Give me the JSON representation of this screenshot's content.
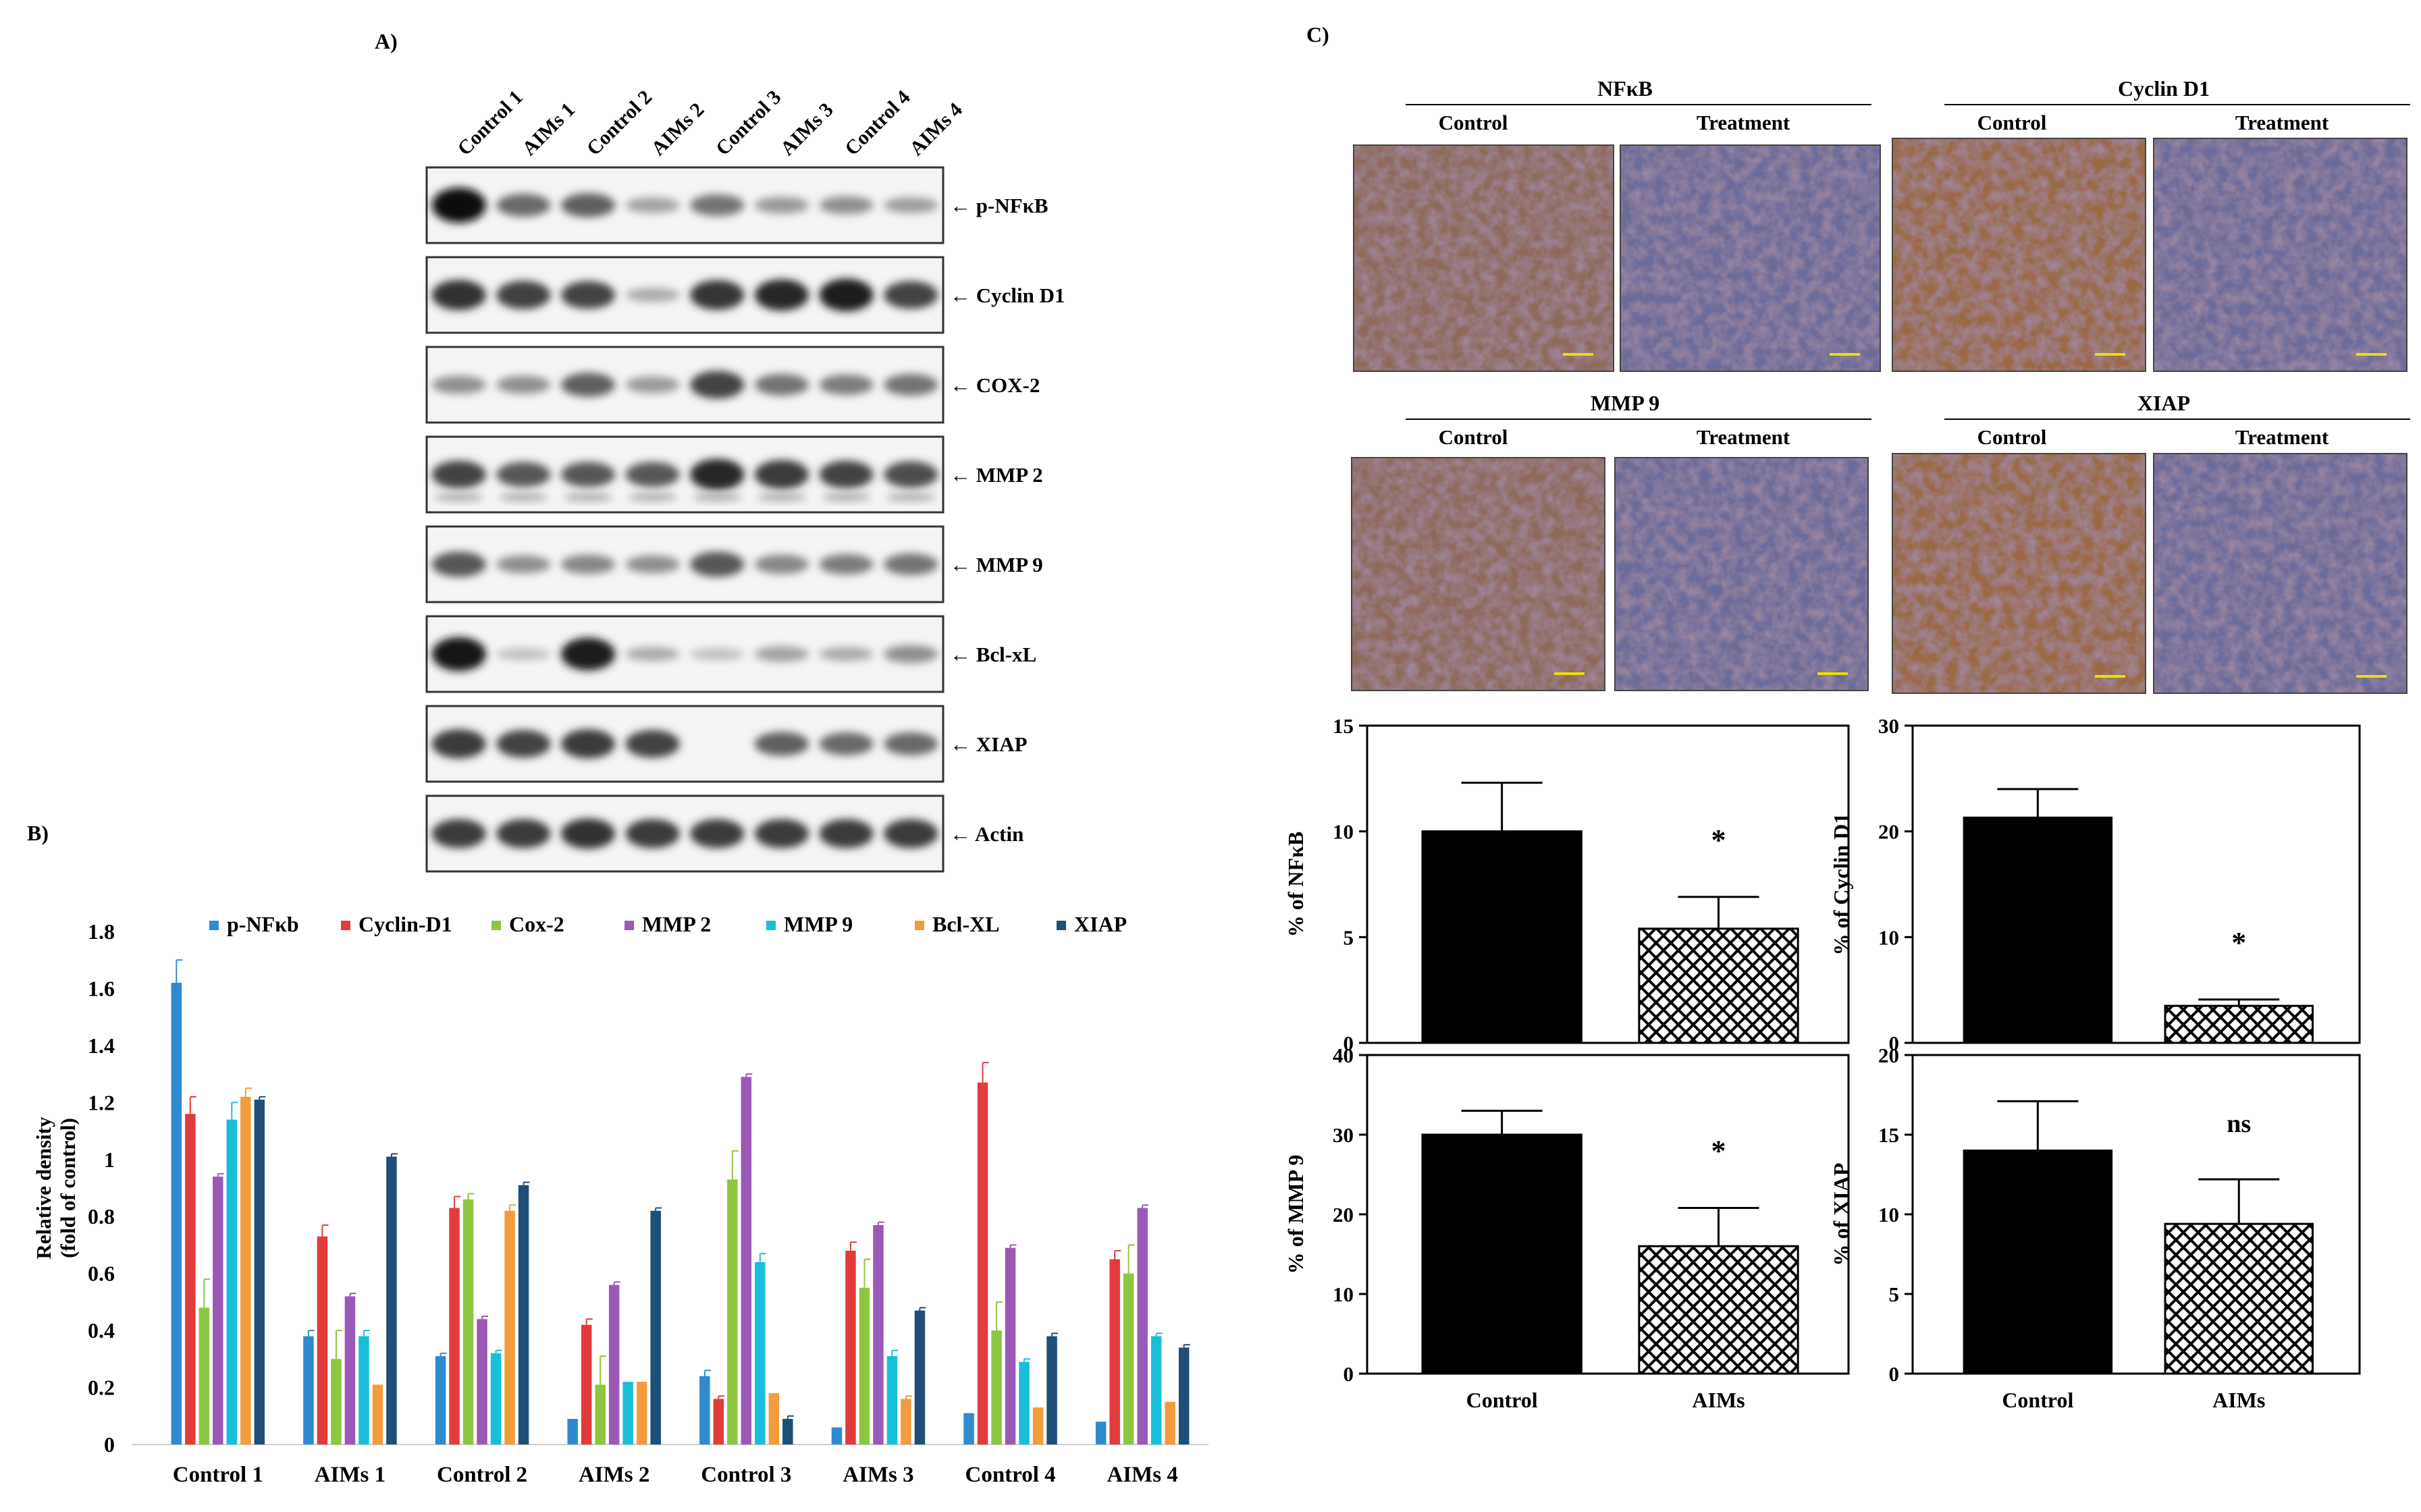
{
  "panel_labels": {
    "a": "A)",
    "b": "B)",
    "c": "C)"
  },
  "blot": {
    "lanes": [
      "Control 1",
      "AIMs 1",
      "Control 2",
      "AIMs 2",
      "Control 3",
      "AIMs 3",
      "Control 4",
      "AIMs 4"
    ],
    "rows": [
      {
        "label": "p-NFκB",
        "intensity": [
          1.0,
          0.5,
          0.55,
          0.2,
          0.45,
          0.25,
          0.3,
          0.22
        ]
      },
      {
        "label": "Cyclin D1",
        "intensity": [
          0.8,
          0.72,
          0.7,
          0.15,
          0.78,
          0.85,
          0.9,
          0.7
        ]
      },
      {
        "label": "COX-2",
        "intensity": [
          0.3,
          0.3,
          0.55,
          0.25,
          0.7,
          0.45,
          0.4,
          0.45
        ]
      },
      {
        "label": "MMP 2",
        "intensity": [
          0.7,
          0.6,
          0.6,
          0.6,
          0.85,
          0.75,
          0.7,
          0.65
        ]
      },
      {
        "label": "MMP 9",
        "intensity": [
          0.6,
          0.3,
          0.35,
          0.3,
          0.6,
          0.35,
          0.4,
          0.45
        ]
      },
      {
        "label": "Bcl-xL",
        "intensity": [
          0.95,
          0.05,
          0.9,
          0.15,
          0.05,
          0.2,
          0.15,
          0.3
        ]
      },
      {
        "label": "XIAP",
        "intensity": [
          0.75,
          0.7,
          0.75,
          0.7,
          0.0,
          0.55,
          0.5,
          0.5
        ]
      },
      {
        "label": "Actin",
        "intensity": [
          0.75,
          0.75,
          0.8,
          0.75,
          0.75,
          0.75,
          0.75,
          0.75
        ]
      }
    ]
  },
  "chart_data": [
    {
      "type": "bar",
      "ylabel": "Relative density (fold of control)",
      "ylabel_lines": [
        "Relative density",
        "(fold of control)"
      ],
      "ylim": [
        0,
        1.8
      ],
      "yticks": [
        "0",
        "0.2",
        "0.4",
        "0.6",
        "0.8",
        "1",
        "1.2",
        "1.4",
        "1.6",
        "1.8"
      ],
      "legend_placement": "top",
      "categories": [
        "Control 1",
        "AIMs 1",
        "Control 2",
        "AIMs 2",
        "Control 3",
        "AIMs 3",
        "Control 4",
        "AIMs 4"
      ],
      "series": [
        {
          "name": "p-NFκb",
          "color": "#2E8BD0",
          "values": [
            1.62,
            0.38,
            0.31,
            0.09,
            0.24,
            0.06,
            0.11,
            0.08
          ],
          "errors": [
            0.08,
            0.02,
            0.01,
            0,
            0.02,
            0,
            0,
            0
          ]
        },
        {
          "name": "Cyclin-D1",
          "color": "#E23B3B",
          "values": [
            1.16,
            0.73,
            0.83,
            0.42,
            0.16,
            0.68,
            1.27,
            0.65
          ],
          "errors": [
            0.06,
            0.04,
            0.04,
            0.02,
            0.01,
            0.03,
            0.07,
            0.03
          ]
        },
        {
          "name": "Cox-2",
          "color": "#8DC63F",
          "values": [
            0.48,
            0.3,
            0.86,
            0.21,
            0.93,
            0.55,
            0.4,
            0.6
          ],
          "errors": [
            0.1,
            0.1,
            0.02,
            0.1,
            0.1,
            0.1,
            0.1,
            0.1
          ]
        },
        {
          "name": "MMP 2",
          "color": "#9B59B6",
          "values": [
            0.94,
            0.52,
            0.44,
            0.56,
            1.29,
            0.77,
            0.69,
            0.83
          ],
          "errors": [
            0.01,
            0.01,
            0.01,
            0.01,
            0.01,
            0.01,
            0.01,
            0.01
          ]
        },
        {
          "name": "MMP 9",
          "color": "#17BFD9",
          "values": [
            1.14,
            0.38,
            0.32,
            0.22,
            0.64,
            0.31,
            0.29,
            0.38
          ],
          "errors": [
            0.06,
            0.02,
            0.01,
            0,
            0.03,
            0.02,
            0.01,
            0.01
          ]
        },
        {
          "name": "Bcl-XL",
          "color": "#F39C3C",
          "values": [
            1.22,
            0.21,
            0.82,
            0.22,
            0.18,
            0.16,
            0.13,
            0.15
          ],
          "errors": [
            0.03,
            0,
            0.02,
            0,
            0,
            0.01,
            0,
            0
          ]
        },
        {
          "name": "XIAP",
          "color": "#1F4E79",
          "values": [
            1.21,
            1.01,
            0.91,
            0.82,
            0.09,
            0.47,
            0.38,
            0.34
          ],
          "errors": [
            0.01,
            0.01,
            0.01,
            0.01,
            0.01,
            0.01,
            0.01,
            0.01
          ]
        }
      ]
    },
    {
      "type": "bar",
      "ylabel": "% of NFκB",
      "ylim": [
        0,
        15
      ],
      "yticks": [
        "0",
        "5",
        "10",
        "15"
      ],
      "categories": [
        "Control",
        "AIMs"
      ],
      "values": [
        10.0,
        5.4
      ],
      "errors": [
        2.3,
        1.5
      ],
      "annotations": [
        "",
        "*"
      ]
    },
    {
      "type": "bar",
      "ylabel": "% of Cyclin D1",
      "ylim": [
        0,
        30
      ],
      "yticks": [
        "0",
        "10",
        "20",
        "30"
      ],
      "categories": [
        "Control",
        "AIMs"
      ],
      "values": [
        21.3,
        3.5
      ],
      "errors": [
        2.7,
        0.6
      ],
      "annotations": [
        "",
        "*"
      ]
    },
    {
      "type": "bar",
      "ylabel": "% of MMP 9",
      "ylim": [
        0,
        40
      ],
      "yticks": [
        "0",
        "10",
        "20",
        "30",
        "40"
      ],
      "categories": [
        "Control",
        "AIMs"
      ],
      "values": [
        30.0,
        16.0
      ],
      "errors": [
        3.0,
        4.8
      ],
      "annotations": [
        "",
        "*"
      ]
    },
    {
      "type": "bar",
      "ylabel": "% of XIAP",
      "ylim": [
        0,
        20
      ],
      "yticks": [
        "0",
        "5",
        "10",
        "15",
        "20"
      ],
      "categories": [
        "Control",
        "AIMs"
      ],
      "values": [
        14.0,
        9.4
      ],
      "errors": [
        3.1,
        2.8
      ],
      "annotations": [
        "",
        "ns"
      ]
    }
  ],
  "ihc": {
    "panels": [
      {
        "title": "NFκB",
        "left": "Control",
        "right": "Treatment"
      },
      {
        "title": "Cyclin D1",
        "left": "Control",
        "right": "Treatment"
      },
      {
        "title": "MMP 9",
        "left": "Control",
        "right": "Treatment"
      },
      {
        "title": "XIAP",
        "left": "Control",
        "right": "Treatment"
      }
    ],
    "colors": {
      "brown": "#9a6a45",
      "blue": "#6c6c9a",
      "light": "#d9d3de"
    }
  }
}
